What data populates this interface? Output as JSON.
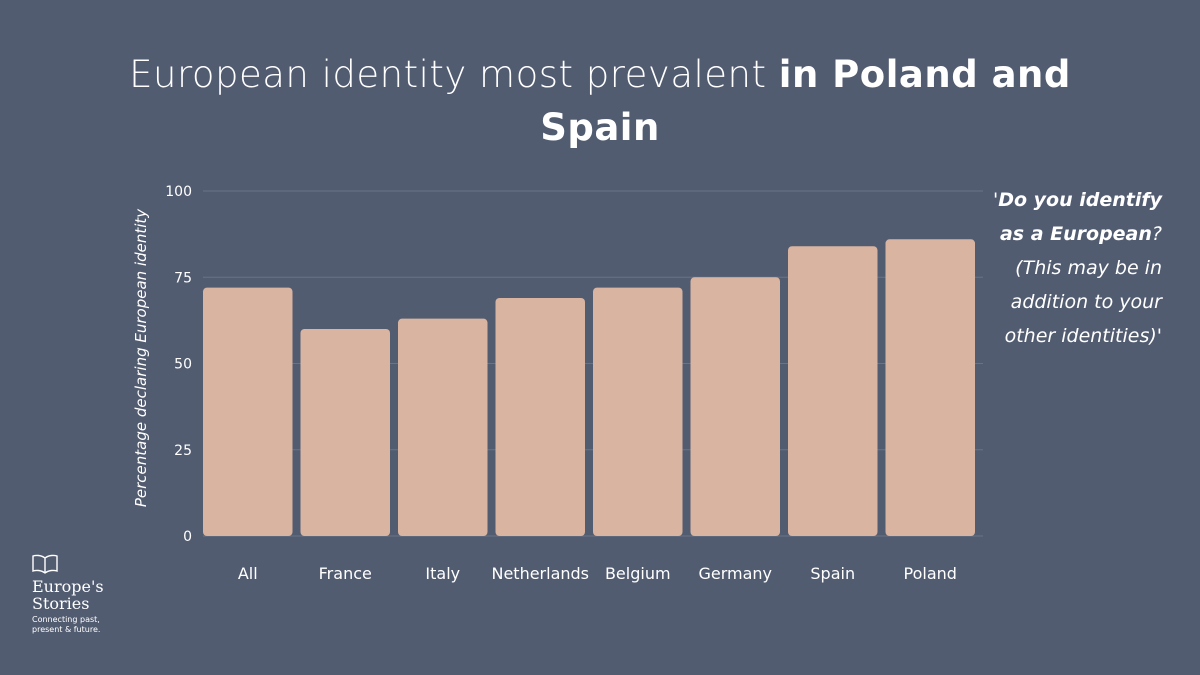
{
  "title": {
    "normal": "European identity most prevalent ",
    "bold": "in Poland and Spain"
  },
  "question": {
    "open": "'",
    "bold": "Do you identify as a European",
    "rest": "? (This may be in addition to your other identities)'"
  },
  "logo": {
    "icon": "open-book-icon",
    "name_line1": "Europe's",
    "name_line2": "Stories",
    "tagline": "Connecting past, present & future."
  },
  "chart_data": {
    "type": "bar",
    "categories": [
      "All",
      "France",
      "Italy",
      "Netherlands",
      "Belgium",
      "Germany",
      "Spain",
      "Poland"
    ],
    "values": [
      72,
      60,
      63,
      69,
      72,
      75,
      84,
      86
    ],
    "title": "European identity most prevalent in Poland and Spain",
    "xlabel": "",
    "ylabel": "Percentage declaring European identity",
    "ylim": [
      0,
      100
    ],
    "yticks": [
      0,
      25,
      50,
      75,
      100
    ],
    "grid": true,
    "bar_color": "#d9b4a0",
    "grid_color": "#6a7386"
  }
}
